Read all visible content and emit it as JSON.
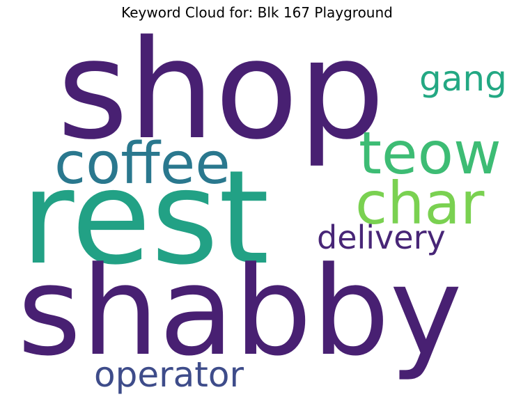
{
  "title": "Keyword Cloud for: Blk 167 Playground",
  "words": [
    {
      "text": "shop",
      "color": "#482072"
    },
    {
      "text": "rest",
      "color": "#22a185"
    },
    {
      "text": "shabby",
      "color": "#482072"
    },
    {
      "text": "coffee",
      "color": "#2a788e"
    },
    {
      "text": "teow",
      "color": "#3dbc74"
    },
    {
      "text": "char",
      "color": "#7ad151"
    },
    {
      "text": "gang",
      "color": "#23a883"
    },
    {
      "text": "delivery",
      "color": "#482677"
    },
    {
      "text": "operator",
      "color": "#3e4c8a"
    }
  ]
}
